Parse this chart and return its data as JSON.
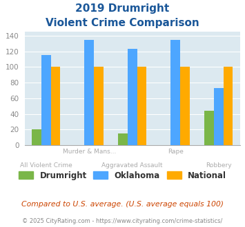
{
  "title_line1": "2019 Drumright",
  "title_line2": "Violent Crime Comparison",
  "categories": [
    "All Violent Crime",
    "Murder & Mans...",
    "Aggravated Assault",
    "Rape",
    "Robbery"
  ],
  "top_labels": [
    "",
    "Murder & Mans...",
    "",
    "Rape",
    ""
  ],
  "bottom_labels": [
    "All Violent Crime",
    "",
    "Aggravated Assault",
    "",
    "Robbery"
  ],
  "drumright": [
    20,
    0,
    15,
    0,
    44
  ],
  "oklahoma": [
    115,
    135,
    123,
    135,
    73
  ],
  "national": [
    100,
    100,
    100,
    100,
    100
  ],
  "bar_colors": {
    "drumright": "#7ab648",
    "oklahoma": "#4da6ff",
    "national": "#ffaa00"
  },
  "ylim": [
    0,
    145
  ],
  "yticks": [
    0,
    20,
    40,
    60,
    80,
    100,
    120,
    140
  ],
  "bg_color": "#dce9f0",
  "legend_labels": [
    "Drumright",
    "Oklahoma",
    "National"
  ],
  "footnote1": "Compared to U.S. average. (U.S. average equals 100)",
  "footnote2": "© 2025 CityRating.com - https://www.cityrating.com/crime-statistics/",
  "title_color": "#1a5799",
  "footnote1_color": "#cc4400",
  "footnote2_color": "#888888",
  "label_color": "#aaaaaa"
}
